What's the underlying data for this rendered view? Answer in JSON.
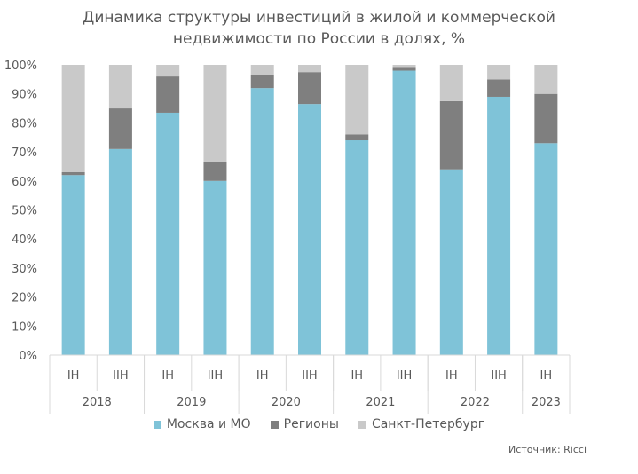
{
  "chart_data": {
    "type": "bar",
    "stacked": true,
    "title_lines": [
      "Динамика структуры инвестиций в жилой и коммерческой",
      "недвижимости по России в долях, %"
    ],
    "categories": [
      "IH",
      "IIH",
      "IH",
      "IIH",
      "IH",
      "IIH",
      "IH",
      "IIH",
      "IH",
      "IIH",
      "IH"
    ],
    "groups": [
      {
        "label": "2018",
        "count": 2
      },
      {
        "label": "2019",
        "count": 2
      },
      {
        "label": "2020",
        "count": 2
      },
      {
        "label": "2021",
        "count": 2
      },
      {
        "label": "2022",
        "count": 2
      },
      {
        "label": "2023",
        "count": 1
      }
    ],
    "series": [
      {
        "name": "Москва и МО",
        "color": "#7fc3d8",
        "values": [
          62,
          71,
          83.5,
          60,
          92,
          86.5,
          74,
          98,
          64,
          89,
          73
        ]
      },
      {
        "name": "Регионы",
        "color": "#7f7f7f",
        "values": [
          1,
          14,
          12.5,
          6.5,
          4.5,
          11,
          2,
          1,
          23.5,
          6,
          17
        ]
      },
      {
        "name": "Санкт-Петербург",
        "color": "#c9c9c9",
        "values": [
          37,
          15,
          4,
          33.5,
          3.5,
          2.5,
          24,
          1,
          12.5,
          5,
          10
        ]
      }
    ],
    "y_ticks": [
      "0%",
      "10%",
      "20%",
      "30%",
      "40%",
      "50%",
      "60%",
      "70%",
      "80%",
      "90%",
      "100%"
    ],
    "ylim": [
      0,
      100
    ],
    "legend_position": "bottom",
    "grid": false
  },
  "source_text": "Источник: Ricci"
}
